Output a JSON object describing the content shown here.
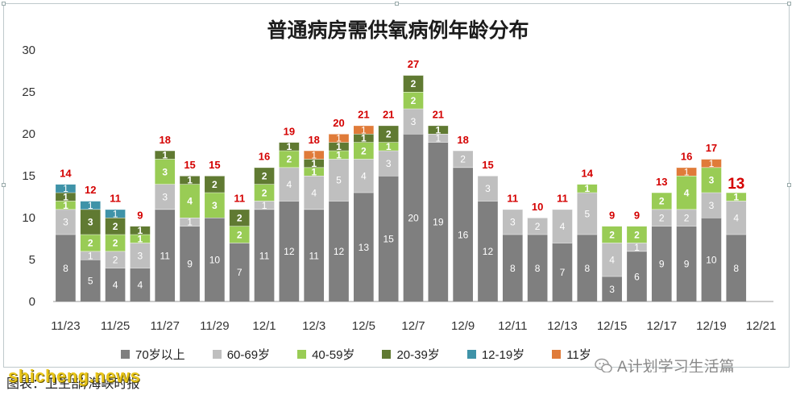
{
  "chart_data": {
    "type": "bar",
    "stacked": true,
    "title": "普通病房需供氧病例年龄分布",
    "ylim": [
      0,
      30
    ],
    "yticks": [
      0,
      5,
      10,
      15,
      20,
      25,
      30
    ],
    "categories": [
      "11/23",
      "11/24",
      "11/25",
      "11/26",
      "11/27",
      "11/28",
      "11/29",
      "11/30",
      "12/1",
      "12/2",
      "12/3",
      "12/4",
      "12/5",
      "12/6",
      "12/7",
      "12/8",
      "12/9",
      "12/10",
      "12/11",
      "12/12",
      "12/13",
      "12/14",
      "12/15",
      "12/16",
      "12/17",
      "12/18",
      "12/19",
      "12/20",
      "12/21"
    ],
    "xtick_labels": [
      "11/23",
      "",
      "11/25",
      "",
      "11/27",
      "",
      "11/29",
      "",
      "12/1",
      "",
      "12/3",
      "",
      "12/5",
      "",
      "12/7",
      "",
      "12/9",
      "",
      "12/11",
      "",
      "12/13",
      "",
      "12/15",
      "",
      "12/17",
      "",
      "12/19",
      "",
      "12/21"
    ],
    "series": [
      {
        "name": "70岁以上",
        "color": "#7f7f7f",
        "label_color": "#ffffff",
        "values": [
          8,
          5,
          4,
          4,
          11,
          9,
          10,
          7,
          11,
          12,
          11,
          12,
          13,
          15,
          20,
          19,
          16,
          12,
          8,
          8,
          7,
          8,
          3,
          6,
          9,
          9,
          10,
          8,
          0
        ]
      },
      {
        "name": "60-69岁",
        "color": "#bfbfbf",
        "label_color": "#ffffff",
        "values": [
          3,
          1,
          2,
          3,
          3,
          1,
          0,
          0,
          1,
          4,
          4,
          5,
          4,
          3,
          3,
          1,
          2,
          3,
          3,
          2,
          4,
          5,
          4,
          1,
          2,
          2,
          3,
          4,
          0
        ]
      },
      {
        "name": "40-59岁",
        "color": "#99cc55",
        "label_color": "#ffffff",
        "values": [
          1,
          2,
          2,
          1,
          3,
          4,
          3,
          2,
          2,
          2,
          1,
          1,
          2,
          1,
          2,
          0,
          0,
          0,
          0,
          0,
          0,
          1,
          2,
          2,
          2,
          4,
          3,
          1,
          0
        ]
      },
      {
        "name": "20-39岁",
        "color": "#607a32",
        "label_color": "#ffffff",
        "values": [
          1,
          3,
          2,
          1,
          1,
          1,
          2,
          2,
          2,
          1,
          1,
          1,
          1,
          2,
          2,
          1,
          0,
          0,
          0,
          0,
          0,
          0,
          0,
          0,
          0,
          0,
          0,
          0,
          0
        ]
      },
      {
        "name": "12-19岁",
        "color": "#3f93a8",
        "label_color": "#ffffff",
        "values": [
          1,
          1,
          1,
          0,
          0,
          0,
          0,
          0,
          0,
          0,
          0,
          0,
          0,
          0,
          0,
          0,
          0,
          0,
          0,
          0,
          0,
          0,
          0,
          0,
          0,
          0,
          0,
          0,
          0
        ]
      },
      {
        "name": "11岁",
        "color": "#e07b39",
        "label_color": "#ffffff",
        "values": [
          0,
          0,
          0,
          0,
          0,
          0,
          0,
          0,
          0,
          0,
          1,
          1,
          1,
          0,
          0,
          0,
          0,
          0,
          0,
          0,
          0,
          0,
          0,
          0,
          0,
          1,
          1,
          0,
          0
        ]
      }
    ],
    "totals": [
      14,
      12,
      11,
      9,
      18,
      15,
      15,
      11,
      16,
      19,
      18,
      20,
      21,
      21,
      27,
      21,
      18,
      15,
      11,
      10,
      11,
      14,
      9,
      9,
      13,
      16,
      17,
      13,
      null
    ],
    "highlight_index": 27,
    "legend_position": "bottom",
    "grid": false
  },
  "watermark": "A计划学习生活篇",
  "caption": "图表：卫生部/海峡时报",
  "site_watermark": "shicheng.news"
}
